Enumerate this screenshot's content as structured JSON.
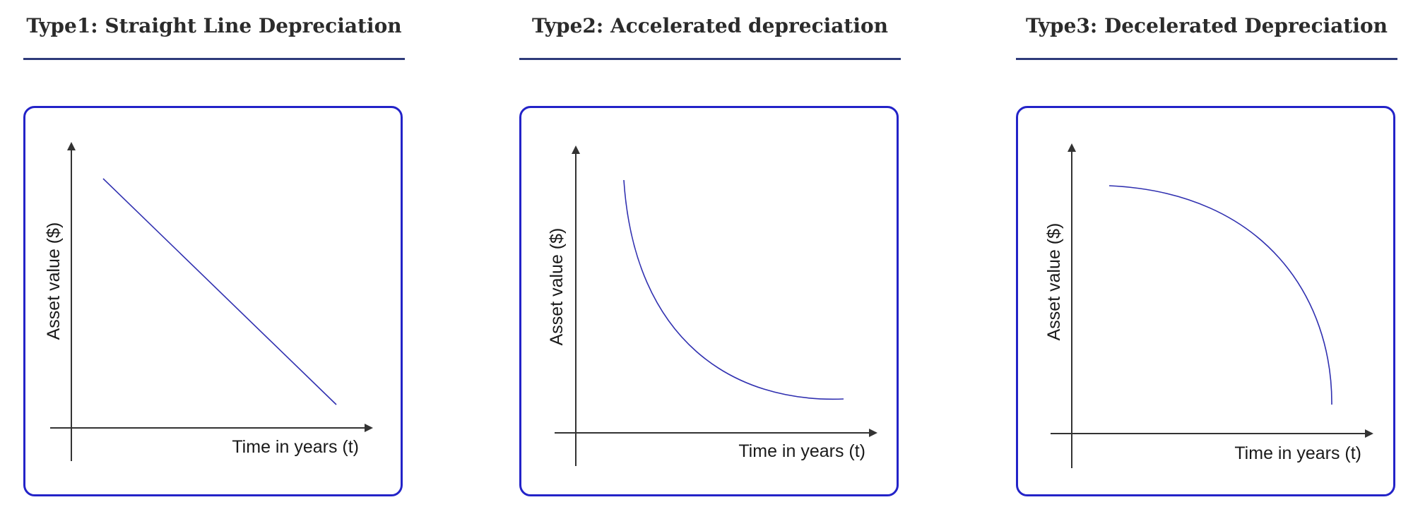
{
  "panels": [
    {
      "title": "Type1:  Straight Line Depreciation",
      "ylabel": "Asset  value  ($)",
      "xlabel": "Time in years  (t)",
      "curve": "straight-line"
    },
    {
      "title": "Type2:  Accelerated depreciation",
      "ylabel": "Asset  value  ($)",
      "xlabel": "Time in years  (t)",
      "curve": "accelerated"
    },
    {
      "title": "Type3:  Decelerated Depreciation",
      "ylabel": "Asset  value  ($)",
      "xlabel": "Time in years  (t)",
      "curve": "decelerated"
    }
  ],
  "colors": {
    "curve": "#3030b0",
    "box_border": "#2323c8",
    "title_rule": "#2e3a7a",
    "axis": "#333333"
  }
}
